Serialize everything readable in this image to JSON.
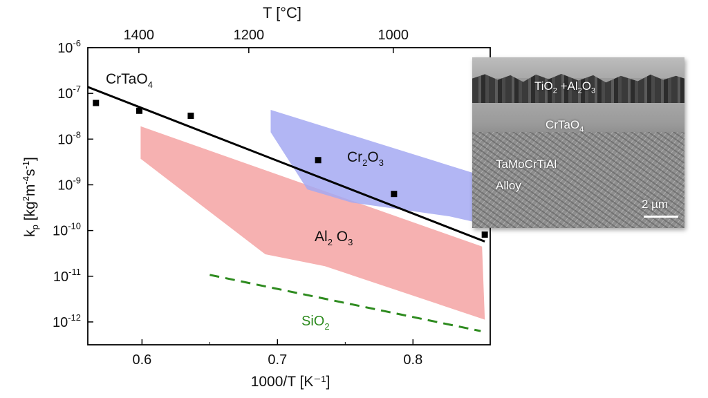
{
  "chart_data": {
    "type": "area",
    "top_axis": {
      "label": "T [°C]",
      "ticks": [
        {
          "label": "1400",
          "celsius": 1400
        },
        {
          "label": "1200",
          "celsius": 1200
        },
        {
          "label": "1000",
          "celsius": 1000
        }
      ]
    },
    "xlabel": "1000/T [K⁻¹]",
    "ylabel": "kp [kg²m⁻⁴s⁻¹]",
    "xlim": [
      0.56,
      0.857
    ],
    "ylim_log10": [
      -12.5,
      -6
    ],
    "x_ticks": [
      {
        "label": "0.6",
        "value": 0.6
      },
      {
        "label": "0.7",
        "value": 0.7
      },
      {
        "label": "0.8",
        "value": 0.8
      }
    ],
    "y_ticks": [
      {
        "label": "10",
        "exp": "-6",
        "value": -6
      },
      {
        "label": "10",
        "exp": "-7",
        "value": -7
      },
      {
        "label": "10",
        "exp": "-8",
        "value": -8
      },
      {
        "label": "10",
        "exp": "-9",
        "value": -9
      },
      {
        "label": "10",
        "exp": "-10",
        "value": -10
      },
      {
        "label": "10",
        "exp": "-11",
        "value": -11
      },
      {
        "label": "10",
        "exp": "-12",
        "value": -12
      }
    ],
    "regions": [
      {
        "name": "Al2O3",
        "label_main": "Al",
        "label_sub1": "2",
        "label_mid": " O",
        "label_sub2": "3",
        "color": "#f4a3a3",
        "polygon": [
          [
            0.599,
            -7.72
          ],
          [
            0.851,
            -10.35
          ],
          [
            0.853,
            -11.95
          ],
          [
            0.735,
            -10.78
          ],
          [
            0.691,
            -10.52
          ],
          [
            0.599,
            -8.43
          ]
        ]
      },
      {
        "name": "Cr2O3",
        "label_main": "Cr",
        "label_sub1": "2",
        "label_mid": "O",
        "label_sub2": "3",
        "color": "#a5a9f2",
        "polygon": [
          [
            0.695,
            -7.36
          ],
          [
            0.851,
            -8.8
          ],
          [
            0.851,
            -9.85
          ],
          [
            0.827,
            -9.69
          ],
          [
            0.755,
            -9.39
          ],
          [
            0.722,
            -9.1
          ],
          [
            0.695,
            -7.85
          ]
        ]
      }
    ],
    "series": [
      {
        "name": "CrTaO4",
        "label_main": "CrTaO",
        "label_sub": "4",
        "color": "#000000",
        "x": [
          0.566,
          0.598,
          0.636,
          0.73,
          0.786,
          0.853
        ],
        "y_log10": [
          -7.21,
          -7.38,
          -7.49,
          -8.46,
          -9.2,
          -10.09
        ]
      }
    ],
    "fit_line": {
      "x": [
        0.56,
        0.853
      ],
      "y_log10": [
        -6.86,
        -10.24
      ],
      "color": "#000000"
    },
    "sio2_line": {
      "label_main": "SiO",
      "label_sub": "2",
      "color": "#2e8b1f",
      "x": [
        0.65,
        0.85
      ],
      "y_log10": [
        -10.97,
        -12.2
      ]
    }
  },
  "inset": {
    "oxide_label_main": "TiO",
    "oxide_sub1": "2",
    "oxide_mid": " +Al",
    "oxide_sub2": "2",
    "oxide_tail": "O",
    "oxide_sub3": "3",
    "crtao_label_main": "CrTaO",
    "crtao_sub": "4",
    "alloy_line1": "TaMoCrTiAl",
    "alloy_line2": "Alloy",
    "scale_label": "2 µm"
  }
}
